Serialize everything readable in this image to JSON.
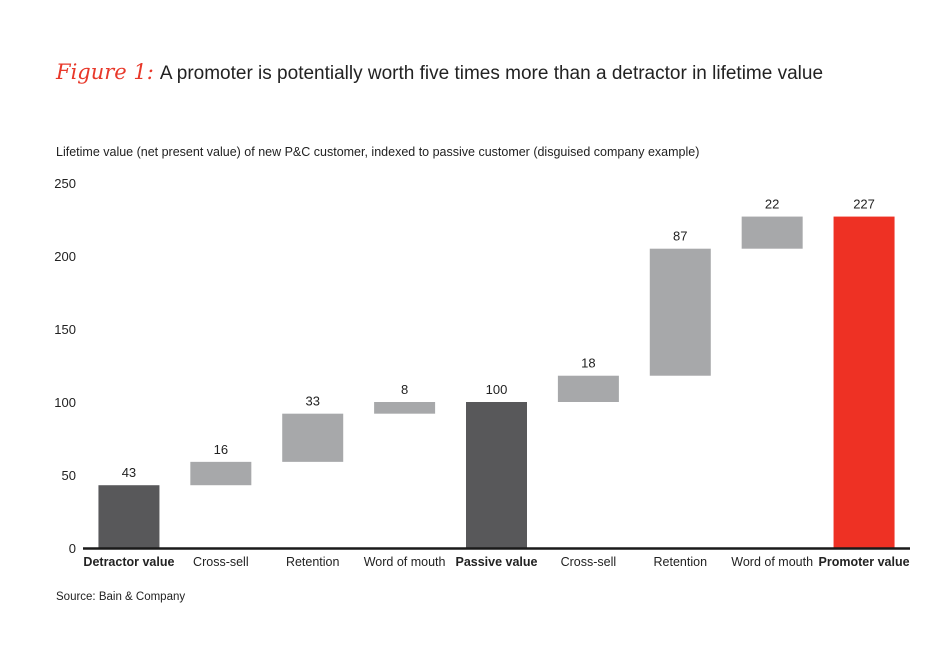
{
  "figure": {
    "label": "Figure 1:",
    "title": "A promoter is potentially worth five times more than a detractor in lifetime value"
  },
  "source": "Source: Bain & Company",
  "colors": {
    "anchor": "#58585a",
    "step": "#a7a8aa",
    "highlight": "#ee3124",
    "axis": "#1a1a1a",
    "text": "#222222"
  },
  "chart_data": {
    "type": "bar",
    "subtype": "waterfall",
    "title": "",
    "ylabel": "Lifetime value (net present value) of new P&C customer, indexed to passive customer (disguised company example)",
    "xlabel": "",
    "ylim": [
      0,
      250
    ],
    "yticks": [
      0,
      50,
      100,
      150,
      200,
      250
    ],
    "grid": false,
    "categories": [
      "Detractor value",
      "Cross-sell",
      "Retention",
      "Word of mouth",
      "Passive value",
      "Cross-sell",
      "Retention",
      "Word of mouth",
      "Promoter value"
    ],
    "bars": [
      {
        "label": "Detractor value",
        "kind": "total",
        "base": 0,
        "value": 43,
        "display": "43",
        "color": "anchor",
        "bold": true
      },
      {
        "label": "Cross-sell",
        "kind": "step",
        "base": 43,
        "value": 16,
        "display": "16",
        "color": "step",
        "bold": false
      },
      {
        "label": "Retention",
        "kind": "step",
        "base": 59,
        "value": 33,
        "display": "33",
        "color": "step",
        "bold": false
      },
      {
        "label": "Word of mouth",
        "kind": "step",
        "base": 92,
        "value": 8,
        "display": "8",
        "color": "step",
        "bold": false
      },
      {
        "label": "Passive value",
        "kind": "total",
        "base": 0,
        "value": 100,
        "display": "100",
        "color": "anchor",
        "bold": true
      },
      {
        "label": "Cross-sell",
        "kind": "step",
        "base": 100,
        "value": 18,
        "display": "18",
        "color": "step",
        "bold": false
      },
      {
        "label": "Retention",
        "kind": "step",
        "base": 118,
        "value": 87,
        "display": "87",
        "color": "step",
        "bold": false
      },
      {
        "label": "Word of mouth",
        "kind": "step",
        "base": 205,
        "value": 22,
        "display": "22",
        "color": "step",
        "bold": false
      },
      {
        "label": "Promoter value",
        "kind": "total",
        "base": 0,
        "value": 227,
        "display": "227",
        "color": "highlight",
        "bold": true
      }
    ]
  }
}
